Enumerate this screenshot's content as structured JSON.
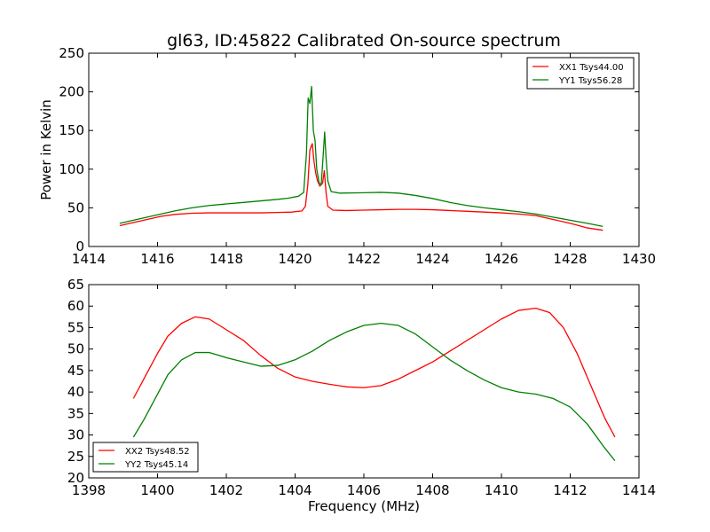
{
  "figure": {
    "title": "gl63, ID:45822 Calibrated On-source spectrum"
  },
  "chart_data": [
    {
      "type": "line",
      "xlabel": "",
      "ylabel": "Power in Kelvin",
      "xlim": [
        1414,
        1430
      ],
      "ylim": [
        0,
        250
      ],
      "xticks": [
        1414,
        1416,
        1418,
        1420,
        1422,
        1424,
        1426,
        1428,
        1430
      ],
      "yticks": [
        0,
        50,
        100,
        150,
        200,
        250
      ],
      "legend_position": "upper right",
      "series": [
        {
          "name": "XX1 Tsys44.00",
          "color": "#ff0000",
          "points": [
            [
              1414.9,
              27
            ],
            [
              1415.3,
              31
            ],
            [
              1415.7,
              35
            ],
            [
              1416.1,
              39
            ],
            [
              1416.5,
              41.5
            ],
            [
              1417.0,
              43
            ],
            [
              1417.5,
              43.5
            ],
            [
              1418.0,
              43.5
            ],
            [
              1418.5,
              43.5
            ],
            [
              1419.0,
              43.5
            ],
            [
              1419.5,
              44
            ],
            [
              1419.9,
              44.5
            ],
            [
              1420.2,
              46
            ],
            [
              1420.3,
              52
            ],
            [
              1420.37,
              80
            ],
            [
              1420.43,
              125
            ],
            [
              1420.5,
              133
            ],
            [
              1420.55,
              110
            ],
            [
              1420.6,
              95
            ],
            [
              1420.65,
              85
            ],
            [
              1420.72,
              78
            ],
            [
              1420.8,
              82
            ],
            [
              1420.85,
              98
            ],
            [
              1420.9,
              70
            ],
            [
              1420.95,
              52
            ],
            [
              1421.1,
              47
            ],
            [
              1421.5,
              46.5
            ],
            [
              1422.0,
              47
            ],
            [
              1422.5,
              47.5
            ],
            [
              1423.0,
              48
            ],
            [
              1423.5,
              48
            ],
            [
              1424.0,
              47.5
            ],
            [
              1424.5,
              46.5
            ],
            [
              1425.0,
              45.5
            ],
            [
              1425.5,
              44.5
            ],
            [
              1426.0,
              43.5
            ],
            [
              1426.5,
              42
            ],
            [
              1427.0,
              40
            ],
            [
              1427.5,
              35
            ],
            [
              1428.0,
              30
            ],
            [
              1428.5,
              24
            ],
            [
              1428.95,
              21
            ]
          ]
        },
        {
          "name": "YY1 Tsys56.28",
          "color": "#008000",
          "points": [
            [
              1414.9,
              30
            ],
            [
              1415.3,
              34
            ],
            [
              1415.7,
              38
            ],
            [
              1416.1,
              42
            ],
            [
              1416.5,
              46
            ],
            [
              1417.0,
              50
            ],
            [
              1417.5,
              53
            ],
            [
              1418.0,
              55
            ],
            [
              1418.5,
              57
            ],
            [
              1419.0,
              59
            ],
            [
              1419.5,
              61
            ],
            [
              1419.8,
              62.5
            ],
            [
              1420.1,
              65
            ],
            [
              1420.25,
              70
            ],
            [
              1420.33,
              120
            ],
            [
              1420.38,
              192
            ],
            [
              1420.43,
              185
            ],
            [
              1420.48,
              207
            ],
            [
              1420.53,
              150
            ],
            [
              1420.58,
              137
            ],
            [
              1420.63,
              100
            ],
            [
              1420.7,
              82
            ],
            [
              1420.76,
              80
            ],
            [
              1420.82,
              120
            ],
            [
              1420.86,
              148
            ],
            [
              1420.9,
              115
            ],
            [
              1420.95,
              85
            ],
            [
              1421.05,
              71
            ],
            [
              1421.3,
              69
            ],
            [
              1422.0,
              69.5
            ],
            [
              1422.5,
              70
            ],
            [
              1423.0,
              69
            ],
            [
              1423.5,
              66
            ],
            [
              1424.0,
              62
            ],
            [
              1424.5,
              57
            ],
            [
              1425.0,
              53
            ],
            [
              1425.5,
              50
            ],
            [
              1426.0,
              47.5
            ],
            [
              1426.5,
              45
            ],
            [
              1427.0,
              42
            ],
            [
              1427.5,
              38
            ],
            [
              1428.0,
              34
            ],
            [
              1428.5,
              30
            ],
            [
              1428.95,
              26
            ]
          ]
        }
      ]
    },
    {
      "type": "line",
      "xlabel": "Frequency (MHz)",
      "ylabel": "",
      "xlim": [
        1398,
        1414
      ],
      "ylim": [
        20,
        65
      ],
      "xticks": [
        1398,
        1400,
        1402,
        1404,
        1406,
        1408,
        1410,
        1412,
        1414
      ],
      "yticks": [
        20,
        25,
        30,
        35,
        40,
        45,
        50,
        55,
        60,
        65
      ],
      "legend_position": "lower left",
      "series": [
        {
          "name": "XX2 Tsys48.52",
          "color": "#ff0000",
          "points": [
            [
              1399.3,
              38.5
            ],
            [
              1399.6,
              43
            ],
            [
              1400.0,
              49
            ],
            [
              1400.3,
              53
            ],
            [
              1400.7,
              56
            ],
            [
              1401.1,
              57.5
            ],
            [
              1401.5,
              57
            ],
            [
              1402.0,
              54.5
            ],
            [
              1402.5,
              52
            ],
            [
              1403.0,
              48.5
            ],
            [
              1403.5,
              45.5
            ],
            [
              1404.0,
              43.5
            ],
            [
              1404.5,
              42.5
            ],
            [
              1405.0,
              41.8
            ],
            [
              1405.5,
              41.2
            ],
            [
              1406.0,
              41
            ],
            [
              1406.5,
              41.5
            ],
            [
              1407.0,
              43
            ],
            [
              1407.5,
              45
            ],
            [
              1408.0,
              47
            ],
            [
              1408.5,
              49.5
            ],
            [
              1409.0,
              52
            ],
            [
              1409.5,
              54.5
            ],
            [
              1410.0,
              57
            ],
            [
              1410.5,
              59
            ],
            [
              1411.0,
              59.5
            ],
            [
              1411.4,
              58.5
            ],
            [
              1411.8,
              55
            ],
            [
              1412.2,
              49
            ],
            [
              1412.6,
              41.5
            ],
            [
              1413.0,
              34
            ],
            [
              1413.3,
              29.5
            ]
          ]
        },
        {
          "name": "YY2 Tsys45.14",
          "color": "#008000",
          "points": [
            [
              1399.3,
              29.5
            ],
            [
              1399.6,
              33.5
            ],
            [
              1400.0,
              39.5
            ],
            [
              1400.3,
              44
            ],
            [
              1400.7,
              47.5
            ],
            [
              1401.1,
              49.2
            ],
            [
              1401.5,
              49.2
            ],
            [
              1402.0,
              48
            ],
            [
              1402.5,
              47
            ],
            [
              1403.0,
              46
            ],
            [
              1403.5,
              46.2
            ],
            [
              1404.0,
              47.5
            ],
            [
              1404.5,
              49.5
            ],
            [
              1405.0,
              52
            ],
            [
              1405.5,
              54
            ],
            [
              1406.0,
              55.5
            ],
            [
              1406.5,
              56
            ],
            [
              1407.0,
              55.5
            ],
            [
              1407.5,
              53.5
            ],
            [
              1408.0,
              50.5
            ],
            [
              1408.5,
              47.5
            ],
            [
              1409.0,
              45
            ],
            [
              1409.5,
              42.8
            ],
            [
              1410.0,
              41
            ],
            [
              1410.5,
              40
            ],
            [
              1411.0,
              39.5
            ],
            [
              1411.5,
              38.5
            ],
            [
              1412.0,
              36.5
            ],
            [
              1412.5,
              32.5
            ],
            [
              1413.0,
              27
            ],
            [
              1413.3,
              24
            ]
          ]
        }
      ]
    }
  ]
}
